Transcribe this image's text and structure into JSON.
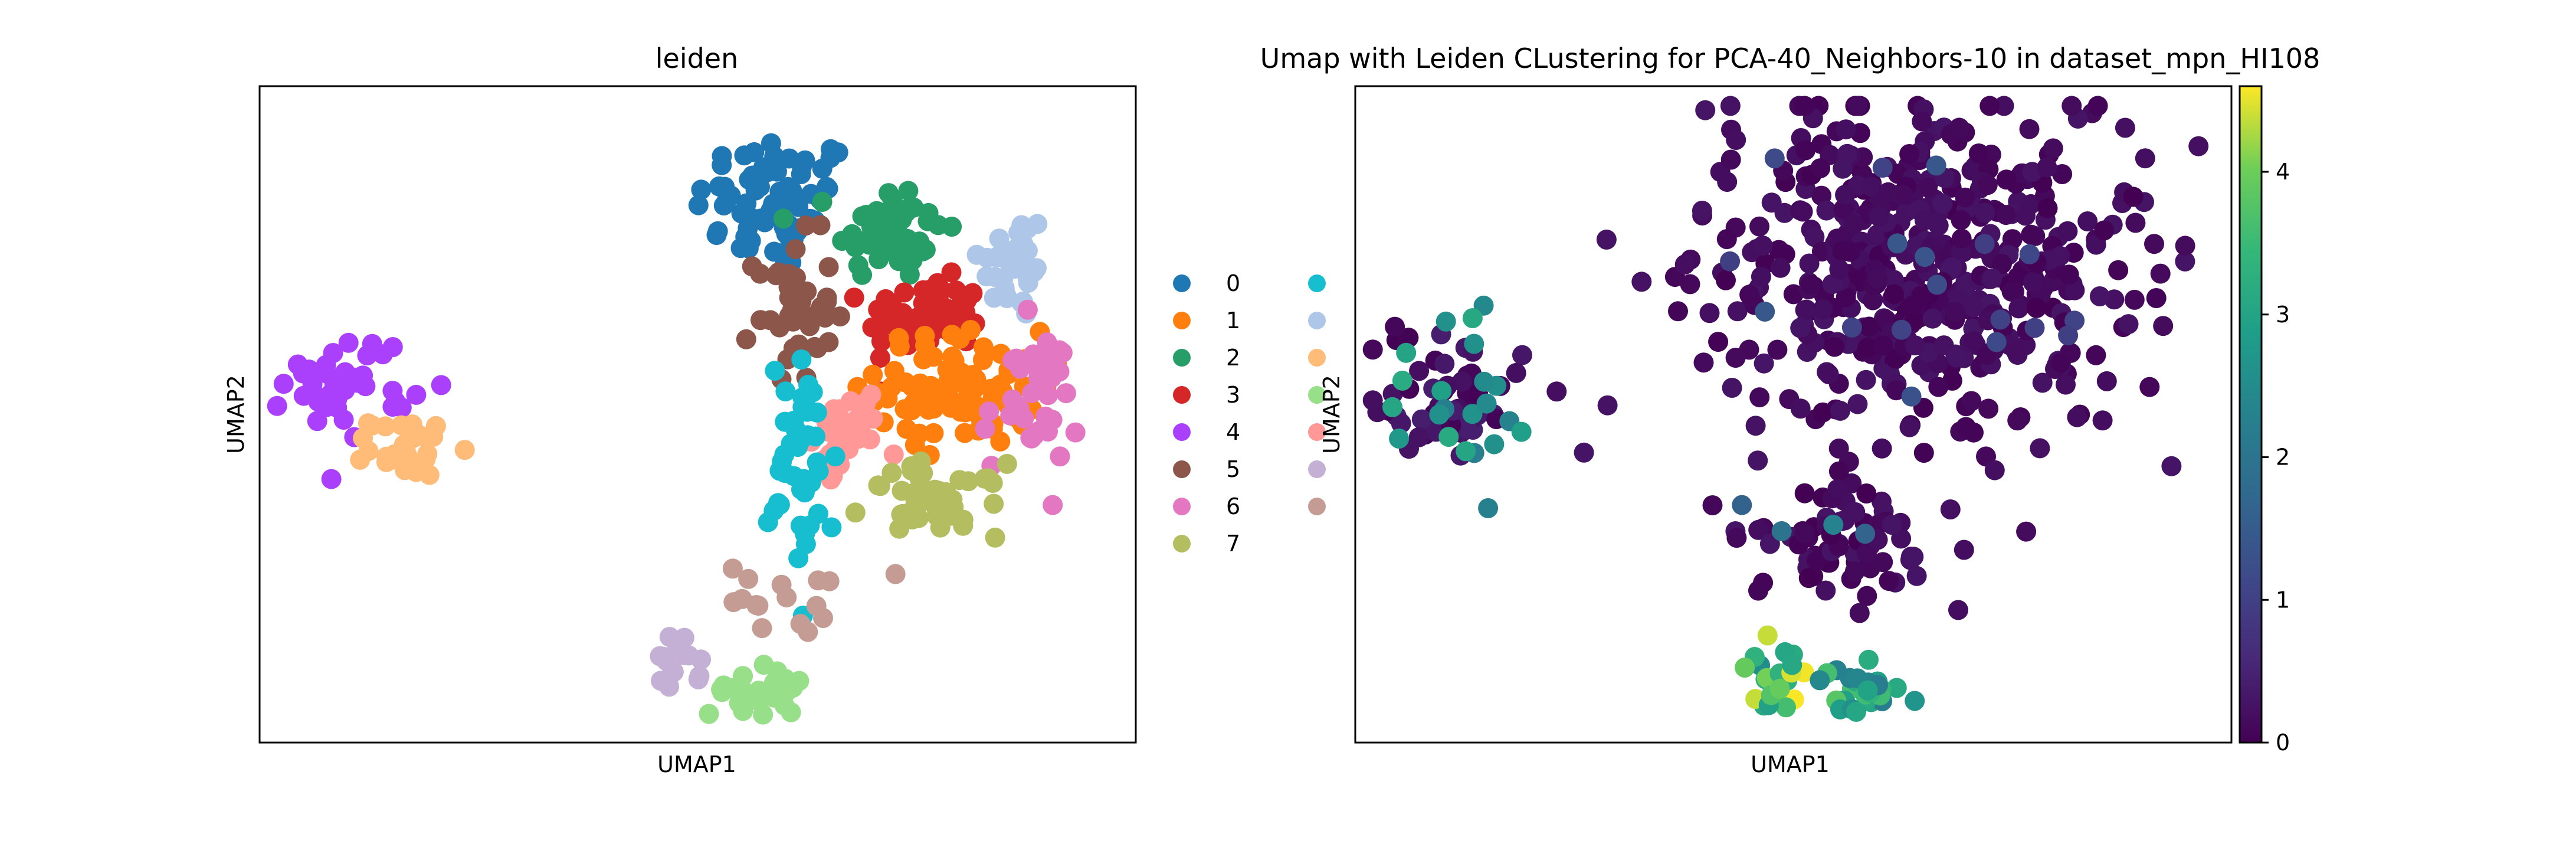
{
  "chart_data": [
    {
      "type": "scatter",
      "title": "leiden",
      "xlabel": "UMAP1",
      "ylabel": "UMAP2",
      "grid": false,
      "legend_placement": "right",
      "legend": [
        {
          "label": "0",
          "color": "#1f77b4"
        },
        {
          "label": "1",
          "color": "#ff7f0e"
        },
        {
          "label": "2",
          "color": "#279e68"
        },
        {
          "label": "3",
          "color": "#d62728"
        },
        {
          "label": "4",
          "color": "#aa40fc"
        },
        {
          "label": "5",
          "color": "#8c564b"
        },
        {
          "label": "6",
          "color": "#e377c2"
        },
        {
          "label": "7",
          "color": "#b5bd61"
        },
        {
          "label": "",
          "color": "#17becf"
        },
        {
          "label": "",
          "color": "#aec7e8"
        },
        {
          "label": "",
          "color": "#ffbb78"
        },
        {
          "label": "",
          "color": "#98df8a"
        },
        {
          "label": "",
          "color": "#ff9896"
        },
        {
          "label": "",
          "color": "#c5b0d5"
        },
        {
          "label": "",
          "color": "#c49c94"
        }
      ],
      "clusters": [
        {
          "color": "#1f77b4",
          "cx": 0.59,
          "cy": 0.82,
          "rx": 0.085,
          "ry": 0.1,
          "n": 70
        },
        {
          "color": "#279e68",
          "cx": 0.72,
          "cy": 0.78,
          "rx": 0.055,
          "ry": 0.07,
          "n": 55
        },
        {
          "color": "#aec7e8",
          "cx": 0.86,
          "cy": 0.73,
          "rx": 0.035,
          "ry": 0.08,
          "n": 35
        },
        {
          "color": "#d62728",
          "cx": 0.76,
          "cy": 0.65,
          "rx": 0.06,
          "ry": 0.05,
          "n": 70
        },
        {
          "color": "#8c564b",
          "cx": 0.61,
          "cy": 0.66,
          "rx": 0.04,
          "ry": 0.1,
          "n": 40
        },
        {
          "color": "#ff7f0e",
          "cx": 0.8,
          "cy": 0.54,
          "rx": 0.085,
          "ry": 0.08,
          "n": 90
        },
        {
          "color": "#e377c2",
          "cx": 0.88,
          "cy": 0.52,
          "rx": 0.05,
          "ry": 0.1,
          "n": 40
        },
        {
          "color": "#ff9896",
          "cx": 0.67,
          "cy": 0.47,
          "rx": 0.035,
          "ry": 0.05,
          "n": 40
        },
        {
          "color": "#b5bd61",
          "cx": 0.77,
          "cy": 0.37,
          "rx": 0.07,
          "ry": 0.05,
          "n": 45
        },
        {
          "color": "#17becf",
          "cx": 0.62,
          "cy": 0.42,
          "rx": 0.035,
          "ry": 0.15,
          "n": 45
        },
        {
          "color": "#c49c94",
          "cx": 0.61,
          "cy": 0.22,
          "rx": 0.07,
          "ry": 0.05,
          "n": 16
        },
        {
          "color": "#c5b0d5",
          "cx": 0.475,
          "cy": 0.115,
          "rx": 0.025,
          "ry": 0.04,
          "n": 15
        },
        {
          "color": "#98df8a",
          "cx": 0.57,
          "cy": 0.08,
          "rx": 0.05,
          "ry": 0.035,
          "n": 28
        },
        {
          "color": "#aa40fc",
          "cx": 0.1,
          "cy": 0.55,
          "rx": 0.065,
          "ry": 0.07,
          "n": 40
        },
        {
          "color": "#ffbb78",
          "cx": 0.17,
          "cy": 0.45,
          "rx": 0.04,
          "ry": 0.04,
          "n": 28
        }
      ]
    },
    {
      "type": "scatter",
      "title": "Umap with Leiden CLustering for PCA-40_Neighbors-10 in dataset_mpn_HI108",
      "xlabel": "UMAP1",
      "ylabel": "UMAP2",
      "grid": false,
      "colorbar": {
        "colormap": "viridis",
        "range": [
          0,
          4.6
        ],
        "ticks": [
          "0",
          "1",
          "2",
          "3",
          "4"
        ]
      },
      "groups": [
        {
          "cx": 0.65,
          "cy": 0.72,
          "rx": 0.22,
          "ry": 0.24,
          "n": 520,
          "value_min": 0,
          "value_max": 0.3,
          "bright_n": 18,
          "bright_value": 1.2
        },
        {
          "cx": 0.55,
          "cy": 0.3,
          "rx": 0.1,
          "ry": 0.08,
          "n": 70,
          "value_min": 0,
          "value_max": 0.3,
          "bright_n": 4,
          "bright_value": 2.0
        },
        {
          "cx": 0.12,
          "cy": 0.52,
          "rx": 0.08,
          "ry": 0.1,
          "n": 55,
          "value_min": 0,
          "value_max": 0.5,
          "bright_n": 22,
          "bright_value": 2.7
        },
        {
          "cx": 0.48,
          "cy": 0.1,
          "rx": 0.03,
          "ry": 0.04,
          "n": 20,
          "value_min": 2.5,
          "value_max": 4.6,
          "bright_n": 0,
          "bright_value": 0
        },
        {
          "cx": 0.57,
          "cy": 0.08,
          "rx": 0.05,
          "ry": 0.035,
          "n": 28,
          "value_min": 2.2,
          "value_max": 3.8,
          "bright_n": 0,
          "bright_value": 0
        }
      ]
    }
  ]
}
